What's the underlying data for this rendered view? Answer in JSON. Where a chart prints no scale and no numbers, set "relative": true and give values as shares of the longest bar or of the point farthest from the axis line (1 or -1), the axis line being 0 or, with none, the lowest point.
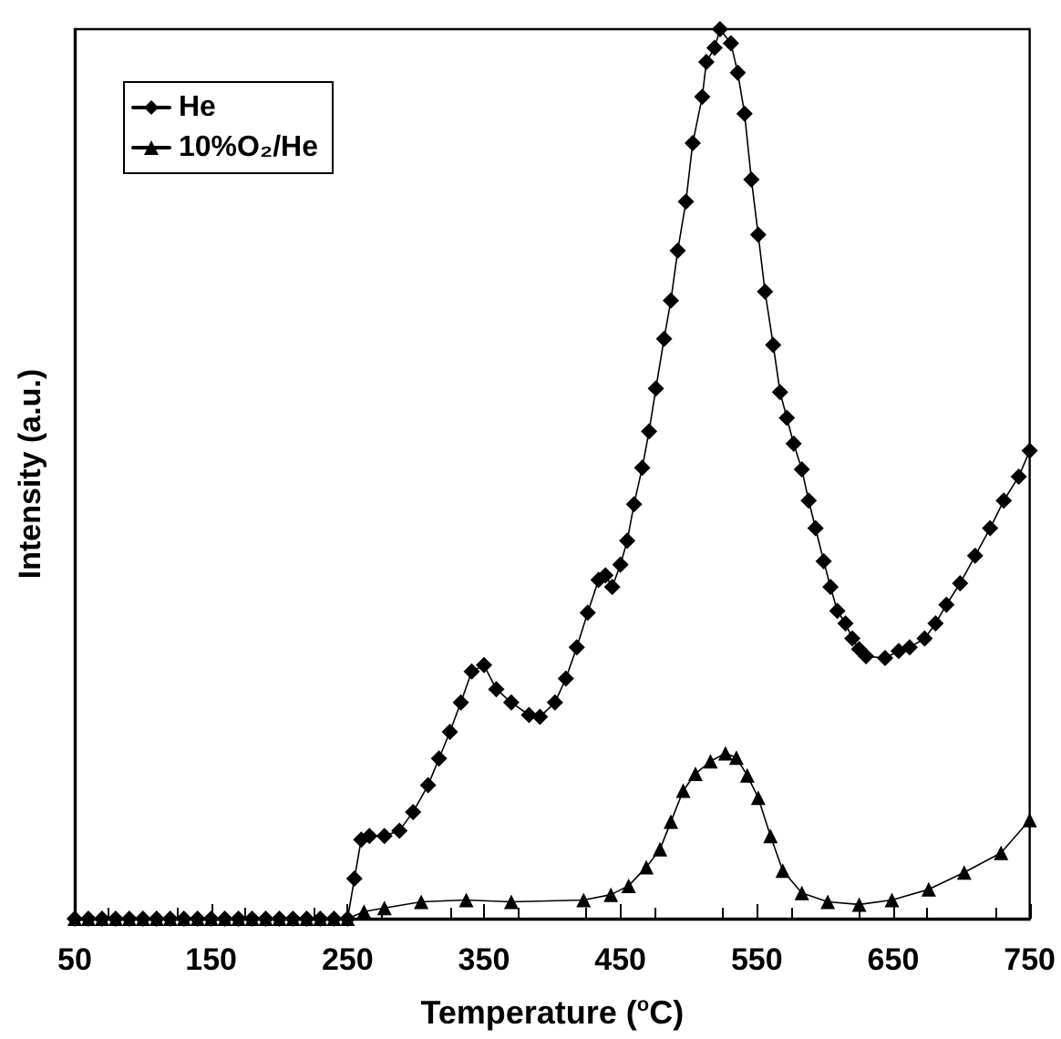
{
  "chart_data": {
    "type": "line",
    "relative": true,
    "xlabel": "Temperature ($^{o}$C)",
    "ylabel": "Intensity (a.u.)",
    "xlim": [
      50,
      750
    ],
    "xticks": [
      50,
      150,
      250,
      350,
      450,
      550,
      650,
      750
    ],
    "legend": "top left",
    "grid": false,
    "line_style": "solid",
    "series": [
      {
        "name": "He",
        "color": "#000000",
        "marker": "diamond",
        "x": [
          50,
          60,
          70,
          80,
          90,
          100,
          110,
          120,
          130,
          140,
          150,
          160,
          170,
          180,
          190,
          200,
          210,
          220,
          230,
          240,
          250,
          255,
          260,
          266,
          277,
          288,
          298,
          309,
          317,
          325,
          333,
          341,
          350,
          359,
          370,
          383,
          391,
          402,
          410,
          418,
          426,
          434,
          439,
          444,
          450,
          455,
          460,
          466,
          471,
          476,
          482,
          487,
          492,
          498,
          503,
          510,
          513,
          519,
          523,
          531,
          536,
          541,
          546,
          551,
          556,
          562,
          567,
          572,
          577,
          583,
          588,
          593,
          599,
          604,
          609,
          615,
          620,
          625,
          630,
          644,
          654,
          662,
          673,
          681,
          689,
          699,
          710,
          721,
          731,
          742,
          750
        ],
        "values": [
          0,
          0,
          0,
          0,
          0,
          0,
          0,
          0,
          0,
          0,
          0,
          0,
          0,
          0,
          0,
          0,
          0,
          0,
          0,
          0,
          0,
          0.045,
          0.089,
          0.093,
          0.093,
          0.099,
          0.12,
          0.15,
          0.18,
          0.21,
          0.243,
          0.278,
          0.285,
          0.258,
          0.243,
          0.229,
          0.227,
          0.243,
          0.27,
          0.305,
          0.344,
          0.381,
          0.386,
          0.373,
          0.398,
          0.425,
          0.466,
          0.507,
          0.548,
          0.596,
          0.652,
          0.695,
          0.751,
          0.806,
          0.872,
          0.924,
          0.963,
          0.979,
          1,
          0.984,
          0.951,
          0.905,
          0.831,
          0.769,
          0.705,
          0.645,
          0.592,
          0.563,
          0.534,
          0.505,
          0.47,
          0.439,
          0.402,
          0.373,
          0.346,
          0.332,
          0.315,
          0.303,
          0.295,
          0.293,
          0.301,
          0.305,
          0.315,
          0.332,
          0.353,
          0.377,
          0.408,
          0.439,
          0.47,
          0.497,
          0.526
        ]
      },
      {
        "name": "10%O₂/He",
        "color": "#000000",
        "marker": "triangle",
        "x": [
          50,
          60,
          70,
          80,
          90,
          100,
          110,
          120,
          130,
          140,
          150,
          160,
          170,
          180,
          190,
          200,
          210,
          220,
          230,
          240,
          250,
          262,
          277,
          304,
          337,
          370,
          423,
          443,
          456,
          469,
          479,
          487,
          496,
          505,
          516,
          527,
          535,
          543,
          551,
          560,
          569,
          583,
          602,
          625,
          649,
          676,
          702,
          729,
          750
        ],
        "values": [
          0,
          0,
          0,
          0,
          0,
          0,
          0,
          0,
          0,
          0,
          0,
          0,
          0,
          0,
          0,
          0,
          0,
          0,
          0,
          0,
          0,
          0.008,
          0.012,
          0.019,
          0.021,
          0.019,
          0.021,
          0.027,
          0.037,
          0.058,
          0.078,
          0.109,
          0.144,
          0.163,
          0.177,
          0.186,
          0.181,
          0.161,
          0.136,
          0.093,
          0.054,
          0.029,
          0.019,
          0.016,
          0.021,
          0.033,
          0.052,
          0.074,
          0.111
        ]
      }
    ]
  }
}
